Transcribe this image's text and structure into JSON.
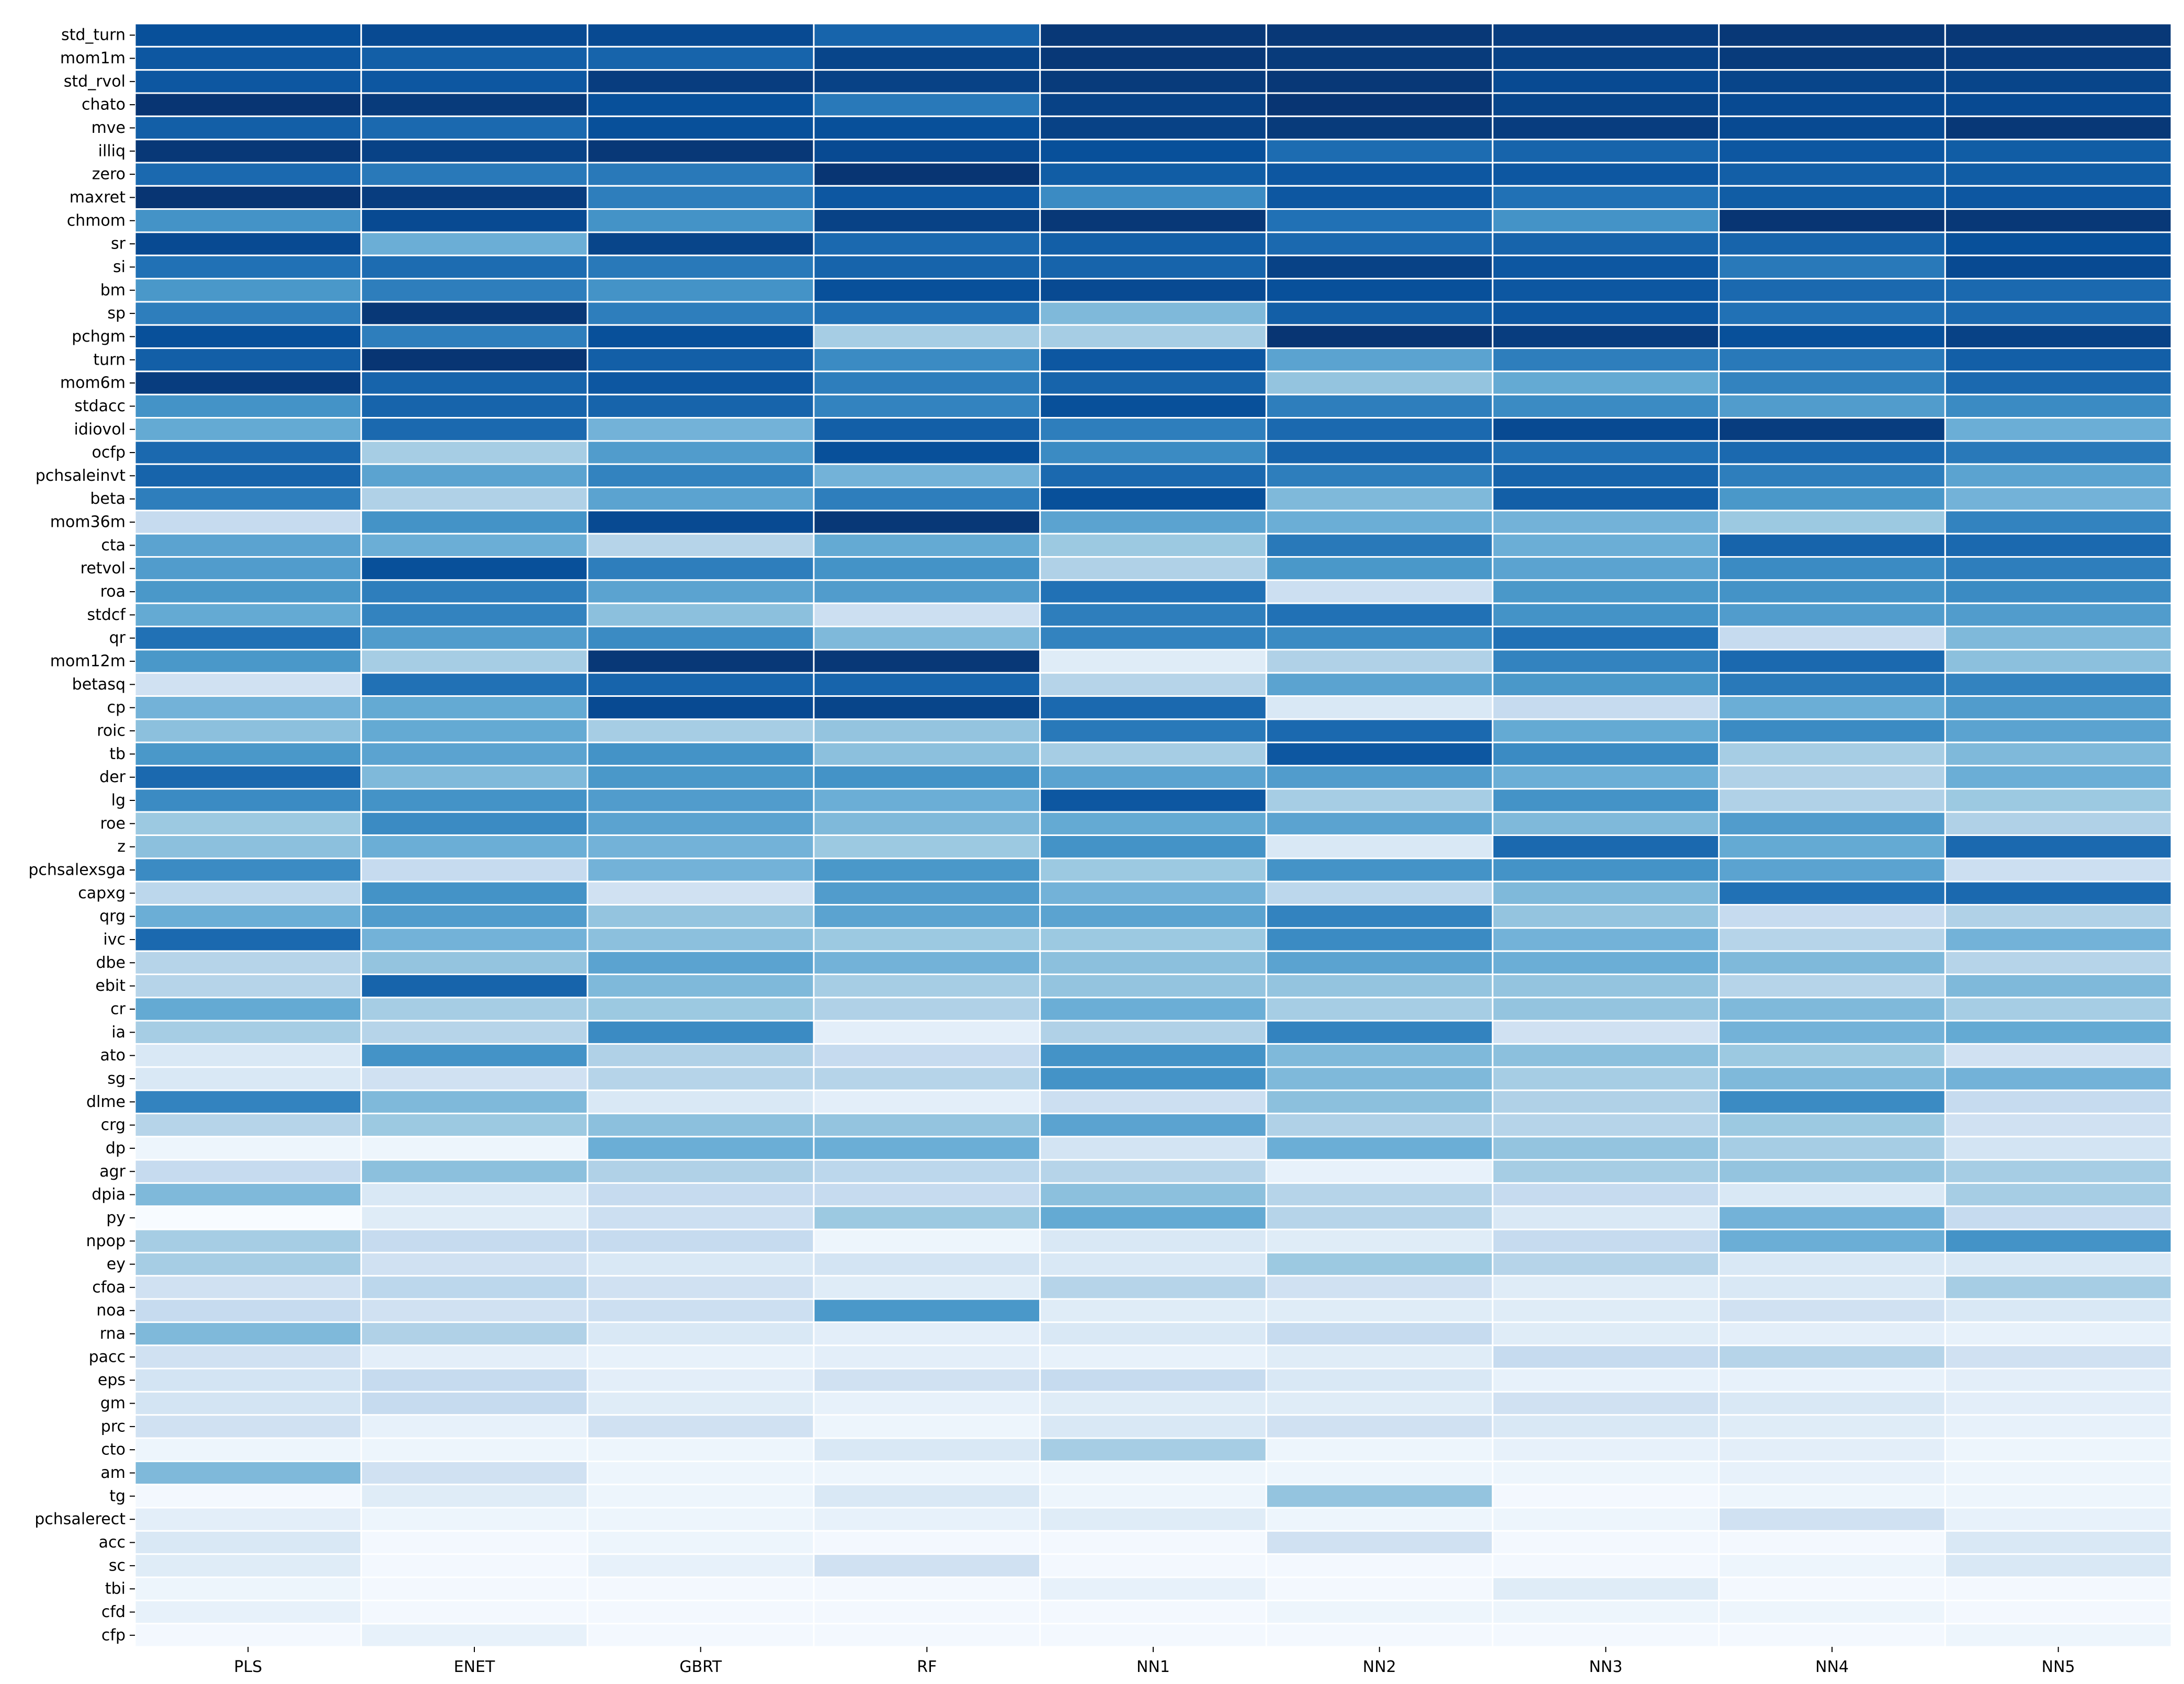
{
  "chart_data": {
    "type": "heatmap",
    "title": "",
    "xlabel": "",
    "ylabel": "",
    "colormap": "Blues",
    "cell_border_color": "#ffffff",
    "columns": [
      "PLS",
      "ENET",
      "GBRT",
      "RF",
      "NN1",
      "NN2",
      "NN3",
      "NN4",
      "NN5"
    ],
    "rows": [
      "std_turn",
      "mom1m",
      "std_rvol",
      "chato",
      "mve",
      "illiq",
      "zero",
      "maxret",
      "chmom",
      "sr",
      "si",
      "bm",
      "sp",
      "pchgm",
      "turn",
      "mom6m",
      "stdacc",
      "idiovol",
      "ocfp",
      "pchsaleinvt",
      "beta",
      "mom36m",
      "cta",
      "retvol",
      "roa",
      "stdcf",
      "qr",
      "mom12m",
      "betasq",
      "cp",
      "roic",
      "tb",
      "der",
      "lg",
      "roe",
      "z",
      "pchsalexsga",
      "capxg",
      "qrg",
      "ivc",
      "dbe",
      "ebit",
      "cr",
      "ia",
      "ato",
      "sg",
      "dlme",
      "crg",
      "dp",
      "agr",
      "dpia",
      "py",
      "npop",
      "ey",
      "cfoa",
      "noa",
      "rna",
      "pacc",
      "eps",
      "gm",
      "prc",
      "cto",
      "am",
      "tg",
      "pchsalerect",
      "acc",
      "sc",
      "tbi",
      "cfd",
      "cfp"
    ],
    "values": [
      [
        0.88,
        0.9,
        0.9,
        0.8,
        0.97,
        0.97,
        0.95,
        0.97,
        0.97
      ],
      [
        0.85,
        0.82,
        0.8,
        0.92,
        0.97,
        0.96,
        0.93,
        0.96,
        0.95
      ],
      [
        0.85,
        0.85,
        0.95,
        0.93,
        0.96,
        0.97,
        0.9,
        0.92,
        0.92
      ],
      [
        0.98,
        0.96,
        0.88,
        0.72,
        0.93,
        0.98,
        0.92,
        0.9,
        0.9
      ],
      [
        0.82,
        0.78,
        0.88,
        0.88,
        0.93,
        0.96,
        0.95,
        0.9,
        0.97
      ],
      [
        0.97,
        0.93,
        0.97,
        0.9,
        0.88,
        0.77,
        0.8,
        0.85,
        0.83
      ],
      [
        0.78,
        0.72,
        0.72,
        0.98,
        0.83,
        0.85,
        0.85,
        0.82,
        0.83
      ],
      [
        0.98,
        0.95,
        0.7,
        0.85,
        0.65,
        0.85,
        0.75,
        0.83,
        0.85
      ],
      [
        0.62,
        0.9,
        0.62,
        0.93,
        0.97,
        0.75,
        0.62,
        0.98,
        0.97
      ],
      [
        0.9,
        0.5,
        0.92,
        0.78,
        0.82,
        0.78,
        0.8,
        0.8,
        0.88
      ],
      [
        0.75,
        0.77,
        0.72,
        0.8,
        0.8,
        0.93,
        0.85,
        0.72,
        0.9
      ],
      [
        0.6,
        0.7,
        0.62,
        0.88,
        0.9,
        0.88,
        0.85,
        0.78,
        0.78
      ],
      [
        0.7,
        0.97,
        0.7,
        0.75,
        0.45,
        0.82,
        0.85,
        0.75,
        0.78
      ],
      [
        0.88,
        0.7,
        0.88,
        0.35,
        0.35,
        0.98,
        0.95,
        0.88,
        0.93
      ],
      [
        0.82,
        0.98,
        0.82,
        0.65,
        0.85,
        0.55,
        0.7,
        0.72,
        0.82
      ],
      [
        0.95,
        0.8,
        0.85,
        0.7,
        0.8,
        0.4,
        0.52,
        0.68,
        0.78
      ],
      [
        0.62,
        0.8,
        0.8,
        0.68,
        0.88,
        0.7,
        0.65,
        0.58,
        0.65
      ],
      [
        0.52,
        0.78,
        0.48,
        0.82,
        0.7,
        0.78,
        0.9,
        0.95,
        0.5
      ],
      [
        0.78,
        0.35,
        0.58,
        0.88,
        0.65,
        0.8,
        0.75,
        0.78,
        0.72
      ],
      [
        0.8,
        0.55,
        0.68,
        0.48,
        0.78,
        0.7,
        0.8,
        0.7,
        0.55
      ],
      [
        0.7,
        0.32,
        0.55,
        0.7,
        0.88,
        0.45,
        0.82,
        0.6,
        0.48
      ],
      [
        0.25,
        0.62,
        0.9,
        0.97,
        0.55,
        0.5,
        0.48,
        0.38,
        0.68
      ],
      [
        0.55,
        0.5,
        0.3,
        0.52,
        0.38,
        0.72,
        0.5,
        0.8,
        0.78
      ],
      [
        0.58,
        0.88,
        0.7,
        0.62,
        0.32,
        0.6,
        0.55,
        0.65,
        0.7
      ],
      [
        0.6,
        0.7,
        0.55,
        0.58,
        0.75,
        0.22,
        0.6,
        0.62,
        0.65
      ],
      [
        0.52,
        0.68,
        0.42,
        0.22,
        0.7,
        0.75,
        0.62,
        0.58,
        0.58
      ],
      [
        0.75,
        0.58,
        0.65,
        0.45,
        0.68,
        0.65,
        0.75,
        0.25,
        0.45
      ],
      [
        0.6,
        0.35,
        0.97,
        0.97,
        0.12,
        0.32,
        0.68,
        0.78,
        0.42
      ],
      [
        0.2,
        0.75,
        0.8,
        0.8,
        0.3,
        0.55,
        0.6,
        0.72,
        0.68
      ],
      [
        0.48,
        0.52,
        0.9,
        0.92,
        0.78,
        0.15,
        0.25,
        0.5,
        0.58
      ],
      [
        0.42,
        0.52,
        0.35,
        0.4,
        0.72,
        0.78,
        0.52,
        0.65,
        0.55
      ],
      [
        0.6,
        0.55,
        0.62,
        0.42,
        0.35,
        0.85,
        0.65,
        0.35,
        0.45
      ],
      [
        0.78,
        0.45,
        0.6,
        0.62,
        0.55,
        0.58,
        0.5,
        0.32,
        0.5
      ],
      [
        0.65,
        0.62,
        0.58,
        0.5,
        0.85,
        0.35,
        0.62,
        0.32,
        0.38
      ],
      [
        0.38,
        0.65,
        0.55,
        0.45,
        0.52,
        0.55,
        0.45,
        0.58,
        0.32
      ],
      [
        0.42,
        0.5,
        0.48,
        0.38,
        0.62,
        0.15,
        0.78,
        0.52,
        0.78
      ],
      [
        0.65,
        0.25,
        0.48,
        0.6,
        0.38,
        0.62,
        0.62,
        0.55,
        0.22
      ],
      [
        0.28,
        0.62,
        0.2,
        0.58,
        0.48,
        0.28,
        0.45,
        0.75,
        0.78
      ],
      [
        0.5,
        0.58,
        0.4,
        0.55,
        0.55,
        0.68,
        0.4,
        0.25,
        0.32
      ],
      [
        0.78,
        0.48,
        0.42,
        0.38,
        0.38,
        0.65,
        0.48,
        0.3,
        0.48
      ],
      [
        0.3,
        0.4,
        0.55,
        0.48,
        0.42,
        0.55,
        0.5,
        0.45,
        0.3
      ],
      [
        0.3,
        0.8,
        0.45,
        0.35,
        0.4,
        0.4,
        0.4,
        0.3,
        0.45
      ],
      [
        0.52,
        0.35,
        0.38,
        0.32,
        0.5,
        0.35,
        0.4,
        0.45,
        0.35
      ],
      [
        0.35,
        0.3,
        0.65,
        0.1,
        0.32,
        0.68,
        0.2,
        0.48,
        0.52
      ],
      [
        0.15,
        0.62,
        0.32,
        0.25,
        0.62,
        0.45,
        0.42,
        0.38,
        0.2
      ],
      [
        0.15,
        0.2,
        0.3,
        0.3,
        0.62,
        0.45,
        0.35,
        0.45,
        0.48
      ],
      [
        0.68,
        0.45,
        0.15,
        0.1,
        0.22,
        0.42,
        0.32,
        0.65,
        0.25
      ],
      [
        0.3,
        0.38,
        0.42,
        0.4,
        0.55,
        0.32,
        0.3,
        0.38,
        0.2
      ],
      [
        0.05,
        0.05,
        0.5,
        0.5,
        0.18,
        0.5,
        0.4,
        0.35,
        0.18
      ],
      [
        0.25,
        0.42,
        0.32,
        0.28,
        0.3,
        0.08,
        0.35,
        0.4,
        0.35
      ],
      [
        0.45,
        0.15,
        0.25,
        0.25,
        0.42,
        0.3,
        0.25,
        0.15,
        0.35
      ],
      [
        0.0,
        0.12,
        0.22,
        0.38,
        0.52,
        0.3,
        0.15,
        0.48,
        0.25
      ],
      [
        0.35,
        0.25,
        0.25,
        0.05,
        0.15,
        0.12,
        0.25,
        0.5,
        0.62
      ],
      [
        0.35,
        0.2,
        0.15,
        0.18,
        0.15,
        0.38,
        0.3,
        0.15,
        0.15
      ],
      [
        0.2,
        0.28,
        0.2,
        0.12,
        0.3,
        0.2,
        0.12,
        0.15,
        0.35
      ],
      [
        0.25,
        0.2,
        0.22,
        0.6,
        0.12,
        0.12,
        0.12,
        0.2,
        0.15
      ],
      [
        0.45,
        0.32,
        0.15,
        0.1,
        0.15,
        0.25,
        0.12,
        0.1,
        0.08
      ],
      [
        0.2,
        0.1,
        0.08,
        0.1,
        0.08,
        0.12,
        0.25,
        0.3,
        0.2
      ],
      [
        0.18,
        0.25,
        0.1,
        0.2,
        0.25,
        0.15,
        0.08,
        0.08,
        0.1
      ],
      [
        0.18,
        0.25,
        0.12,
        0.08,
        0.12,
        0.12,
        0.2,
        0.15,
        0.1
      ],
      [
        0.2,
        0.08,
        0.2,
        0.05,
        0.15,
        0.2,
        0.15,
        0.12,
        0.08
      ],
      [
        0.05,
        0.05,
        0.05,
        0.15,
        0.35,
        0.05,
        0.08,
        0.1,
        0.05
      ],
      [
        0.45,
        0.2,
        0.05,
        0.05,
        0.05,
        0.05,
        0.05,
        0.08,
        0.05
      ],
      [
        0.02,
        0.12,
        0.05,
        0.15,
        0.05,
        0.4,
        0.02,
        0.05,
        0.05
      ],
      [
        0.1,
        0.05,
        0.05,
        0.08,
        0.12,
        0.05,
        0.05,
        0.2,
        0.08
      ],
      [
        0.15,
        0.02,
        0.05,
        0.02,
        0.02,
        0.2,
        0.02,
        0.02,
        0.15
      ],
      [
        0.12,
        0.02,
        0.08,
        0.2,
        0.02,
        0.02,
        0.02,
        0.05,
        0.15
      ],
      [
        0.05,
        0.02,
        0.02,
        0.02,
        0.08,
        0.02,
        0.12,
        0.02,
        0.02
      ],
      [
        0.08,
        0.02,
        0.02,
        0.02,
        0.02,
        0.05,
        0.05,
        0.05,
        0.02
      ],
      [
        0.02,
        0.08,
        0.02,
        0.02,
        0.02,
        0.02,
        0.02,
        0.02,
        0.05
      ]
    ]
  }
}
